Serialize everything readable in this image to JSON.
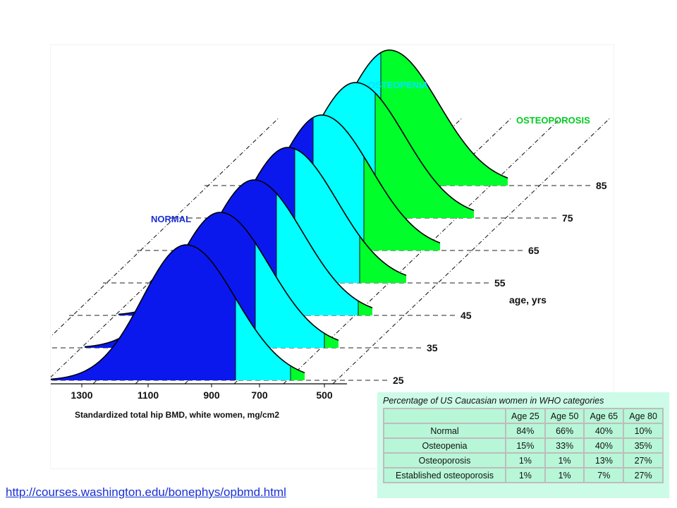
{
  "chart_data": {
    "type": "area",
    "labels": {
      "normal": "NORMAL",
      "osteopenia": "OSTEOPENIA",
      "osteoporosis": "OSTEOPOROSIS"
    },
    "colors": {
      "normal": "#0a18ee",
      "osteopenia": "#00ffff",
      "osteoporosis": "#00ff2a",
      "normal_label": "#1a2fd6",
      "osteopenia_label": "#00e5ff",
      "osteoporosis_label": "#00cc22"
    },
    "x_ticks": [
      "1300",
      "1100",
      "900",
      "700",
      "500"
    ],
    "xlabel": "Standardized total hip BMD,  white women, mg/cm2",
    "age_axis_label": "age, yrs",
    "ages": [
      "25",
      "35",
      "45",
      "55",
      "65",
      "75",
      "85"
    ],
    "series": [
      {
        "age": 25,
        "fractions": [
          0.84,
          0.15,
          0.01
        ]
      },
      {
        "age": 35,
        "fractions": [
          0.75,
          0.24,
          0.01
        ]
      },
      {
        "age": 45,
        "fractions": [
          0.66,
          0.33,
          0.01
        ]
      },
      {
        "age": 55,
        "fractions": [
          0.53,
          0.4,
          0.07
        ]
      },
      {
        "age": 65,
        "fractions": [
          0.4,
          0.4,
          0.2
        ]
      },
      {
        "age": 75,
        "fractions": [
          0.22,
          0.42,
          0.36
        ]
      },
      {
        "age": 85,
        "fractions": [
          0.08,
          0.32,
          0.6
        ]
      }
    ]
  },
  "who_table": {
    "title": "Percentage of US Caucasian women in WHO categories",
    "columns": [
      "",
      "Age 25",
      "Age 50",
      "Age 65",
      "Age 80"
    ],
    "rows": [
      {
        "label": "Normal",
        "values": [
          "84%",
          "66%",
          "40%",
          "10%"
        ]
      },
      {
        "label": "Osteopenia",
        "values": [
          "15%",
          "33%",
          "40%",
          "35%"
        ]
      },
      {
        "label": "Osteoporosis",
        "values": [
          "1%",
          "1%",
          "13%",
          "27%"
        ]
      },
      {
        "label": "Established osteoporosis",
        "values": [
          "1%",
          "1%",
          "7%",
          "27%"
        ]
      }
    ]
  },
  "source_link": "http://courses.washington.edu/bonephys/opbmd.html"
}
